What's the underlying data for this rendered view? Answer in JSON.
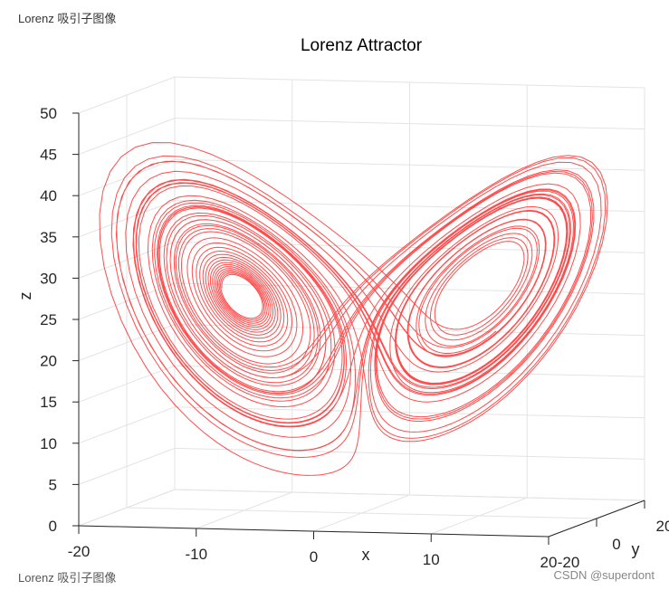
{
  "caption_top": "Lorenz 吸引子图像",
  "caption_bottom": "Lorenz 吸引子图像",
  "watermark": "CSDN @superdont",
  "chart_data": {
    "type": "line3d",
    "title": "Lorenz Attractor",
    "xlabel": "x",
    "ylabel": "y",
    "zlabel": "z",
    "xlim": [
      -20,
      20
    ],
    "ylim": [
      -20,
      20
    ],
    "zlim": [
      0,
      50
    ],
    "xticks": [
      "-20",
      "-10",
      "0",
      "10",
      "20"
    ],
    "yticks": [
      "-20",
      "0",
      "20"
    ],
    "zticks": [
      "0",
      "5",
      "10",
      "15",
      "20",
      "25",
      "30",
      "35",
      "40",
      "45",
      "50"
    ],
    "grid": true,
    "line_color": "#ff0000"
  }
}
